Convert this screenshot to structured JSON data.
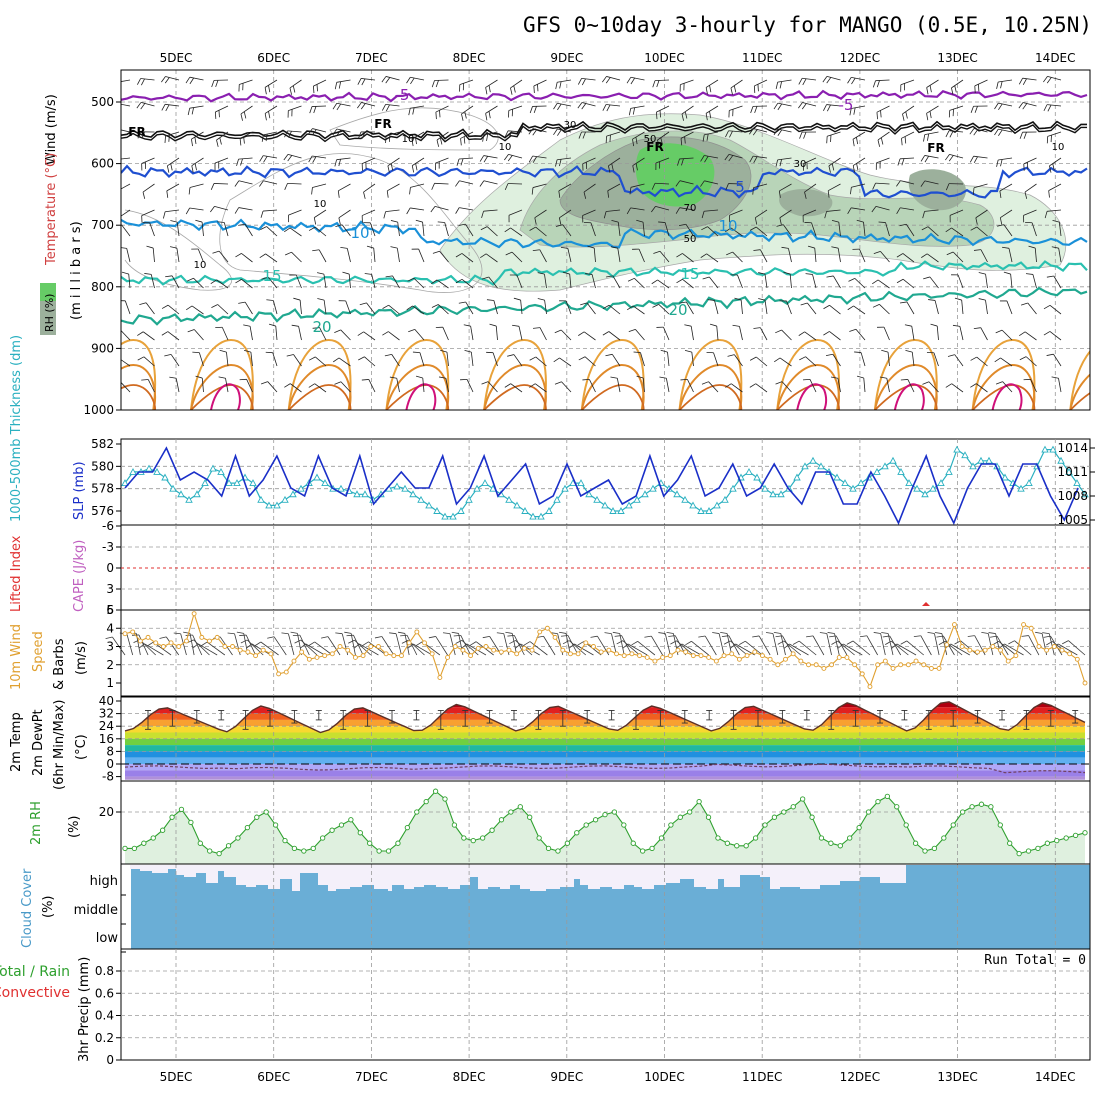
{
  "title": "GFS 0~10day 3-hourly for MANGO (0.5E, 10.25N)",
  "dates": [
    "5DEC",
    "6DEC",
    "7DEC",
    "8DEC",
    "9DEC",
    "10DEC",
    "11DEC",
    "12DEC",
    "13DEC",
    "14DEC"
  ],
  "panels": {
    "upper_air": {
      "label_wind": "Wind (m/s)",
      "label_temp": "Temperature (°C)",
      "label_rh": "RH (%)",
      "label_mb": "(m i l l i b a r s)",
      "y_ticks": [
        "500",
        "600",
        "700",
        "800",
        "900",
        "1000"
      ],
      "contour_labels": [
        "-5",
        "-5",
        "FR",
        "FR",
        "FR",
        "FR",
        "5",
        "10",
        "10",
        "15",
        "15",
        "20",
        "20",
        "10",
        "10",
        "10",
        "30",
        "50",
        "30",
        "70",
        "50",
        "10",
        "10"
      ]
    },
    "slp_thickness": {
      "label_thick": "1000-500mb Thickness (dm)",
      "label_slp": "SLP (mb)",
      "left_ticks": [
        "582",
        "580",
        "578",
        "576"
      ],
      "right_ticks": [
        "1014",
        "1011",
        "1008",
        "1005"
      ]
    },
    "cape_li": {
      "label_li": "Lifted Index",
      "label_cape": "CAPE (J/kg)",
      "ticks": [
        "-6",
        "-3",
        "0",
        "3",
        "6"
      ]
    },
    "wind10m": {
      "label_a": "10m Wind",
      "label_b": "Speed",
      "label_c": "& Barbs",
      "label_unit": "(m/s)",
      "ticks": [
        "5",
        "4",
        "3",
        "2",
        "1"
      ]
    },
    "temp2m": {
      "label_a": "2m Temp",
      "label_b": "2m DewPt",
      "label_c": "(6hr Min/Max)",
      "label_unit": "(°C)",
      "ticks": [
        "40",
        "32",
        "24",
        "16",
        "8",
        "0",
        "-8"
      ]
    },
    "rh2m": {
      "label": "2m RH",
      "label_unit": "(%)",
      "ticks": [
        "20"
      ]
    },
    "cloud": {
      "label": "Cloud Cover",
      "label_unit": "(%)",
      "levels": [
        "high",
        "middle",
        "low"
      ]
    },
    "precip": {
      "label_a": "Total / Rain",
      "label_b": "Convective",
      "label_axis": "3hr Precip (mm)",
      "ticks": [
        "0.8",
        "0.6",
        "0.4",
        "0.2",
        "0"
      ],
      "run_total": "Run Total = 0"
    }
  },
  "colors": {
    "slp": "#1a2fc8",
    "thickness": "#2ab0c0",
    "wind10m": "#e0a030",
    "rh2m": "#2ea02e",
    "cloud": "#6aaed6",
    "cloud_clear": "#f4f0fa",
    "temp_line": "#5a3028",
    "lifted_index": "#e03030",
    "rh_light": "#dff0df",
    "rh_mid": "#b8d4b8",
    "rh_dark": "#9cb09c",
    "rh_max": "#66cc66"
  },
  "chart_data": [
    {
      "type": "line",
      "name": "upper-air",
      "ylabel": "millibars",
      "ylim": [
        1000,
        450
      ],
      "note": "time-pressure cross-section of temperature, RH and wind",
      "x_range": [
        "4DEC 12Z",
        "14DEC 06Z"
      ]
    },
    {
      "type": "line",
      "name": "slp-thickness",
      "left_ylim": [
        575,
        582.5
      ],
      "right_ylim": [
        1004,
        1015
      ],
      "slp": [
        1009,
        1007,
        1011,
        1012,
        1011,
        1013,
        1014,
        1007,
        1010,
        1012,
        1011,
        1013,
        1010,
        1006,
        1008,
        1012,
        1013,
        1011,
        1008,
        1006,
        1010,
        1012,
        1013,
        1012,
        1009,
        1006,
        1008,
        1011,
        1013,
        1012,
        1009,
        1006,
        1008,
        1012,
        1013,
        1010,
        1007,
        1005,
        1009,
        1012,
        1011,
        1013,
        1009,
        1006,
        1009,
        1012,
        1013,
        1010,
        1007,
        1005,
        1009,
        1011,
        1013,
        1012,
        1008,
        1006,
        1010,
        1012,
        1012,
        1010,
        1007,
        1005,
        1008,
        1011,
        1012,
        1010,
        1008,
        1007,
        1009,
        1011,
        1010,
        1009,
        1007,
        1005,
        1008,
        1011,
        1013,
        1011,
        1008,
        1006,
        1010,
        1012,
        1013,
        1011,
        1008,
        1006,
        1009,
        1011,
        1012,
        1010,
        1008,
        1007,
        1009,
        1011,
        1012,
        1011,
        1009,
        1008,
        1007,
        1009,
        1011,
        1012,
        1011,
        1009,
        1007,
        1006,
        1007,
        1008,
        1011,
        1010,
        1008,
        1006,
        1004,
        1006,
        1009,
        1012,
        1013,
        1011,
        1008,
        1006,
        1004,
        1006,
        1009,
        1011,
        1012,
        1013,
        1012,
        1010,
        1008,
        1011,
        1012,
        1013,
        1012,
        1010,
        1008,
        1006,
        1005,
        1007,
        1009,
        1010
      ],
      "thickness": [
        578.5,
        579.5,
        579.5,
        579.8,
        579.5,
        579.0,
        578.0,
        577.5,
        577.0,
        577.5,
        578.5,
        579.8,
        579.5,
        578.5,
        578.5,
        579.0,
        578.5,
        577.0,
        576.5,
        576.5,
        577.0,
        577.5,
        578.0,
        578.5,
        579.0,
        578.5,
        578.0,
        578.0,
        577.8,
        577.5,
        577.5,
        577.0,
        577.5,
        578.0,
        578.2,
        578.0,
        577.5,
        577.0,
        576.5,
        576.0,
        575.5,
        575.5,
        576.0,
        577.0,
        578.0,
        578.5,
        578.0,
        577.5,
        577.0,
        576.5,
        576.0,
        575.5,
        575.5,
        576.0,
        577.0,
        578.0,
        578.5,
        578.5,
        577.5,
        577.0,
        576.5,
        576.0,
        576.0,
        576.5,
        577.0,
        577.5,
        578.0,
        578.5,
        578.0,
        577.5,
        577.0,
        576.5,
        576.0,
        576.0,
        576.5,
        577.0,
        578.0,
        579.0,
        579.5,
        579.0,
        578.0,
        577.5,
        577.5,
        578.0,
        579.0,
        580.0,
        580.5,
        580.0,
        579.5,
        579.0,
        578.5,
        578.0,
        578.5,
        579.0,
        579.5,
        580.0,
        580.5,
        579.5,
        578.5,
        578.0,
        577.5,
        578.0,
        578.5,
        579.5,
        581.5,
        581.0,
        580.0,
        580.5,
        580.5,
        580.0,
        579.0,
        578.5,
        578.0,
        578.5,
        580.0,
        581.5,
        581.5,
        580.5,
        579.5,
        578.5,
        577.5
      ],
      "thickness_ylabel": "1000-500mb Thickness (dm)",
      "slp_ylabel": "SLP (mb)"
    },
    {
      "type": "line",
      "name": "cape-lifted-index",
      "ylim": [
        6,
        -6
      ],
      "lifted_index": 0,
      "cape": 0
    },
    {
      "type": "line",
      "name": "10m-wind-speed",
      "ylim": [
        0.5,
        5
      ],
      "values": [
        3.7,
        3.8,
        3.3,
        3.5,
        3.2,
        3.0,
        3.2,
        3.0,
        3.3,
        4.8,
        3.5,
        3.3,
        3.5,
        3.0,
        3.0,
        2.8,
        2.7,
        2.5,
        2.8,
        2.6,
        1.5,
        1.6,
        2.2,
        2.7,
        2.3,
        2.4,
        2.5,
        2.6,
        3.0,
        2.8,
        2.4,
        2.5,
        3.0,
        3.0,
        2.6,
        2.5,
        2.5,
        3.2,
        3.8,
        3.2,
        2.6,
        1.3,
        2.4,
        3.0,
        2.8,
        2.5,
        2.9,
        3.0,
        2.8,
        2.7,
        2.8,
        2.6,
        2.9,
        2.8,
        3.8,
        4.0,
        3.5,
        2.8,
        2.6,
        2.6,
        3.2,
        3.0,
        2.7,
        2.8,
        2.6,
        2.5,
        2.6,
        2.5,
        2.4,
        2.2,
        2.4,
        2.5,
        2.8,
        2.7,
        2.5,
        2.5,
        2.4,
        2.2,
        2.5,
        2.6,
        2.3,
        2.5,
        2.7,
        2.5,
        2.3,
        2.0,
        2.3,
        2.6,
        2.2,
        2.0,
        2.0,
        1.8,
        2.0,
        2.4,
        2.4,
        2.0,
        1.5,
        0.8,
        2.0,
        2.2,
        1.8,
        2.0,
        2.0,
        2.2,
        2.0,
        1.8,
        1.8,
        3.1,
        4.2,
        3.0,
        2.8,
        2.7,
        2.8,
        3.0,
        2.8,
        2.2,
        2.5,
        4.2,
        4.0,
        3.0,
        2.8,
        3.0,
        2.8,
        2.6,
        2.3,
        1.0
      ]
    },
    {
      "type": "area",
      "name": "2m-temperature",
      "ylim": [
        -10,
        42
      ],
      "daily_max": [
        36,
        37,
        36,
        38,
        37,
        37,
        37,
        39,
        40,
        39
      ],
      "daily_min": [
        21,
        20,
        20,
        21,
        21,
        21,
        21,
        21,
        21,
        21
      ],
      "dewpoint": [
        -2,
        -3,
        -3,
        -2,
        -2,
        -2,
        -1,
        -1,
        -2,
        -5
      ]
    },
    {
      "type": "area",
      "name": "2m-relative-humidity",
      "ylim": [
        0,
        32
      ],
      "values": [
        6,
        6,
        8,
        10,
        13,
        18,
        21,
        16,
        8,
        5,
        4,
        7,
        10,
        14,
        18,
        20,
        15,
        9,
        6,
        5,
        6,
        10,
        13,
        15,
        17,
        12,
        8,
        5,
        5,
        8,
        14,
        20,
        24,
        28,
        25,
        15,
        10,
        9,
        10,
        13,
        17,
        20,
        22,
        18,
        10,
        6,
        5,
        8,
        12,
        15,
        17,
        19,
        20,
        15,
        8,
        5,
        6,
        10,
        15,
        18,
        20,
        24,
        18,
        10,
        8,
        7,
        7,
        10,
        15,
        18,
        20,
        22,
        25,
        18,
        10,
        8,
        7,
        10,
        14,
        20,
        24,
        26,
        22,
        15,
        8,
        5,
        6,
        10,
        15,
        20,
        22,
        23,
        22,
        15,
        8,
        4,
        5,
        6,
        8,
        9,
        10,
        11,
        12
      ]
    },
    {
      "type": "bar",
      "name": "cloud-cover",
      "levels": [
        "high",
        "middle",
        "low"
      ],
      "ylim": [
        0,
        100
      ]
    },
    {
      "type": "bar",
      "name": "3hr-precipitation",
      "ylim": [
        0,
        1
      ],
      "values": [
        0
      ],
      "run_total": "Run Total = 0"
    }
  ]
}
